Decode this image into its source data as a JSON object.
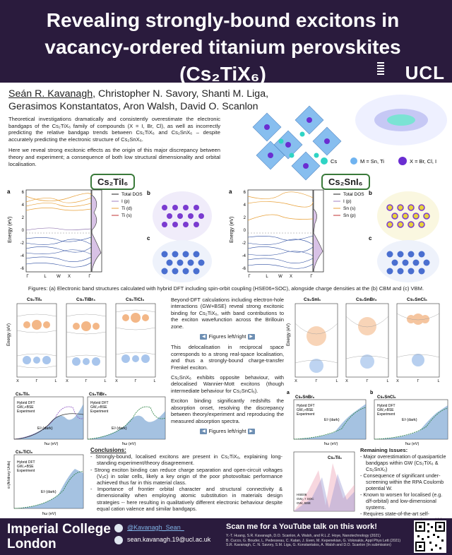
{
  "header": {
    "title": "Revealing strongly-bound excitons in vacancy-ordered titanium perovskites (Cs₂TiX₆)",
    "logo": "UCL"
  },
  "authors": {
    "first": "Seán R. Kavanagh",
    "rest": ", Christopher N. Savory, Shanti M. Liga, Gerasimos Konstantatos, Aron Walsh, David O. Scanlon"
  },
  "abstract": {
    "p1": "Theoretical investigations dramatically and consistently overestimate the electronic bandgaps of the Cs₂TiX₆ family of compounds (X = I, Br, Cl), as well as incorrectly predicting the relative bandgap trends between Cs₂TiX₆ and Cs₂SnX₆ – despite accurately predicting the electronic structure of Cs₂SnX₆.",
    "p2": "Here we reveal strong excitonic effects as the origin of this major discrepancy between theory and experiment; a consequence of both low structural dimensionality and orbital localisation."
  },
  "legend_structure": {
    "cs": "Cs",
    "m": "M = Sn, Ti",
    "x": "X = Br, Cl, I"
  },
  "top_figures": {
    "ti_label": "Cs₂TiI₆",
    "sn_label": "Cs₂SnI₆",
    "ylabel": "Energy (eV)",
    "kpoints": [
      "Γ",
      "L",
      "W",
      "X",
      "Γ"
    ],
    "ti_yticks": [
      "6",
      "4",
      "2",
      "0",
      "-2",
      "-4",
      "-6"
    ],
    "sn_yticks": [
      "6",
      "4",
      "2",
      "0",
      "-2",
      "-4",
      "-6"
    ],
    "ti_legend": [
      "Total DOS",
      "I (p)",
      "Ti (d)",
      "Ti (s)"
    ],
    "sn_legend": [
      "Total DOS",
      "I (p)",
      "Sn (s)",
      "Sn (p)"
    ],
    "panel_a": "a",
    "panel_b": "b",
    "panel_c": "c"
  },
  "caption": "Figures: (a) Electronic band structures calculated with hybrid DFT including spin-orbit coupling (HSE06+SOC), alongside charge densities at the (b) CBM and (c) VBM.",
  "bse_panels": {
    "ti": [
      "Cs₂TiI₆",
      "Cs₂TiBr₆",
      "Cs₂TiCl₆"
    ],
    "sn": [
      "Cs₂SnI₆",
      "Cs₂SnBr₆",
      "Cs₂SnCl₆"
    ],
    "kx": [
      "X",
      "Γ",
      "L"
    ],
    "ylabel": "Energy (eV)"
  },
  "absorption": {
    "ti_titles": [
      "Cs₂TiI₆",
      "Cs₂TiBr₆",
      "Cs₂TiCl₆"
    ],
    "sn_titles": [
      "Cs₂SnBr₆",
      "Cs₂SnCl₆"
    ],
    "legend": [
      "Hybrid DFT",
      "GW₀+BSE",
      "Experiment"
    ],
    "ylabel": "α (Arbitrary Units)",
    "xlabel": "ħω (eV)",
    "eg": "Eᵍ (dark)",
    "panel_a": "a",
    "panel_b": "b"
  },
  "middle": {
    "p1": "Beyond-DFT calculations including electron-hole interactions (GW+BSE) reveal strong excitonic binding for Cs₂TiX₆, with band contributions to the exciton wavefunction across the Brillouin zone.",
    "btn1": "Figures left/right",
    "p2": "This delocalisation in reciprocal space corresponds to a strong real-space localisation, and thus a strongly-bound charge-transfer Frenkel exciton.",
    "p3": "Cs₂SnX₆ exhibits opposite behaviour, with delocalised Wannier-Mott excitons (though intermediate behaviour for Cs₂SnCl₆).",
    "p4": "Exciton binding significantly redshifts the absorption onset, resolving the discrepancy between theory/experiment and reproducing the measured absorption spectra.",
    "btn2": "Figures left/right"
  },
  "conclusions": {
    "heading": "Conclusions:",
    "items": [
      "Strongly-bound, localised excitons are present in Cs₂TiX₆, explaining long-standing experiment/theory disagreement.",
      "Strong exciton binding can reduce charge separation and open-circuit voltages (Vₒc) in solar cells, likely a key origin of the poor photovoltaic performance achieved thus far in this material class.",
      "Importance of frontier orbital character and structural connectivity & dimensionality when employing atomic substitution in materials design strategies -- here resulting in qualitatively different electronic behaviour despite equal cation valence and similar bandgaps."
    ]
  },
  "remaining": {
    "heading": "Remaining Issues:",
    "items": [
      "Major overestimation of quasiparticle bandgaps within GW (Cs₂TiX₆ & Cs₂SnX₆)",
      "Consequence of significant under-screening within the RPA Coulomb potential W.",
      "Known to worsen for localised (e.g. d/f-orbital) and low-dimensional systems.",
      "Requires state-of-the-art self-consistent vertex corrections within the GW calculation."
    ]
  },
  "small_chart": {
    "title": "Cs₂TiI₆",
    "legend": [
      "HSE06",
      "GW₀ + SOC",
      "GW₀ BSE"
    ]
  },
  "footer": {
    "institution_line1": "Imperial College",
    "institution_line2": "London",
    "twitter": "@Kavanagh_Sean_",
    "email": "sean.kavanagh.19@ucl.ac.uk",
    "scan": "Scan me for a YouTube talk on this work!",
    "ref1": "Y.-T. Huang, S.R. Kavanagh, D.O. Scanlon, A. Walsh, and R.L.Z. Hoye, Nanotechnology (2021)",
    "ref2": "B. Cucco, G. Bouder, L. Pedesseau, C. Katan, J. Even, M. Kepenekian, G. Volonakis, Appl Phys Lett (2021)",
    "ref3": "S.R. Kavanagh, C. N. Savory, S.M. Liga, G. Konstantatos, A. Walsh and D.O. Scanlon (In submission)"
  },
  "colors": {
    "header_bg": "#2a1b3d",
    "cs": "#2fd4c4",
    "m": "#6fb3f0",
    "x": "#6a2dd1",
    "label_border": "#3a7a3a"
  }
}
